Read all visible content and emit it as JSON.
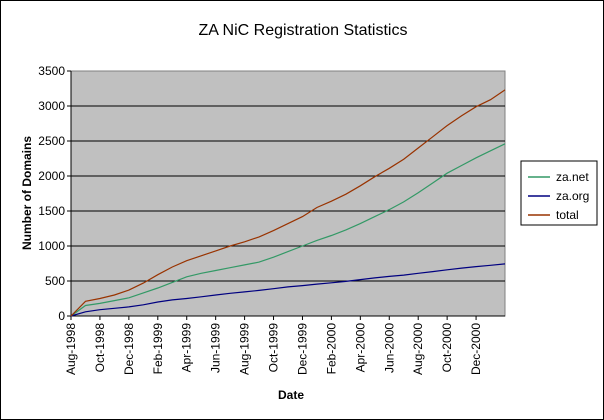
{
  "chart_data": {
    "type": "line",
    "title": "ZA NiC Registration Statistics",
    "xlabel": "Date",
    "ylabel": "Number of Domains",
    "ylim": [
      0,
      3500
    ],
    "yticks": [
      0,
      500,
      1000,
      1500,
      2000,
      2500,
      3000,
      3500
    ],
    "xlim": [
      "1998-08",
      "2001-02"
    ],
    "x_tick_labels": [
      "Aug-1998",
      "Oct-1998",
      "Dec-1998",
      "Feb-1999",
      "Apr-1999",
      "Jun-1999",
      "Aug-1999",
      "Oct-1999",
      "Dec-1999",
      "Feb-2000",
      "Apr-2000",
      "Jun-2000",
      "Aug-2000",
      "Oct-2000",
      "Dec-2000"
    ],
    "grid": "horizontal",
    "legend_position": "right",
    "plot_background": "#c0c0c0",
    "x": [
      "1998-08",
      "1998-09",
      "1998-10",
      "1998-11",
      "1998-12",
      "1999-01",
      "1999-02",
      "1999-03",
      "1999-04",
      "1999-05",
      "1999-06",
      "1999-07",
      "1999-08",
      "1999-09",
      "1999-10",
      "1999-11",
      "1999-12",
      "2000-01",
      "2000-02",
      "2000-03",
      "2000-04",
      "2000-05",
      "2000-06",
      "2000-07",
      "2000-08",
      "2000-09",
      "2000-10",
      "2000-11",
      "2000-12",
      "2001-01",
      "2001-02"
    ],
    "series": [
      {
        "name": "za.net",
        "color": "#339966",
        "values": [
          0,
          150,
          180,
          220,
          260,
          330,
          400,
          480,
          560,
          610,
          650,
          690,
          730,
          770,
          840,
          920,
          1000,
          1080,
          1150,
          1230,
          1320,
          1420,
          1520,
          1630,
          1760,
          1900,
          2040,
          2150,
          2260,
          2360,
          2460
        ]
      },
      {
        "name": "za.org",
        "color": "#000080",
        "values": [
          0,
          60,
          90,
          110,
          130,
          160,
          200,
          230,
          250,
          275,
          300,
          325,
          345,
          365,
          390,
          415,
          435,
          455,
          475,
          495,
          520,
          545,
          565,
          585,
          610,
          635,
          660,
          685,
          705,
          725,
          745
        ]
      },
      {
        "name": "total",
        "color": "#993300",
        "values": [
          0,
          210,
          250,
          300,
          370,
          470,
          590,
          700,
          790,
          860,
          930,
          1000,
          1060,
          1130,
          1220,
          1320,
          1420,
          1550,
          1640,
          1740,
          1860,
          1990,
          2110,
          2240,
          2400,
          2560,
          2720,
          2860,
          2990,
          3090,
          3230
        ]
      }
    ]
  }
}
